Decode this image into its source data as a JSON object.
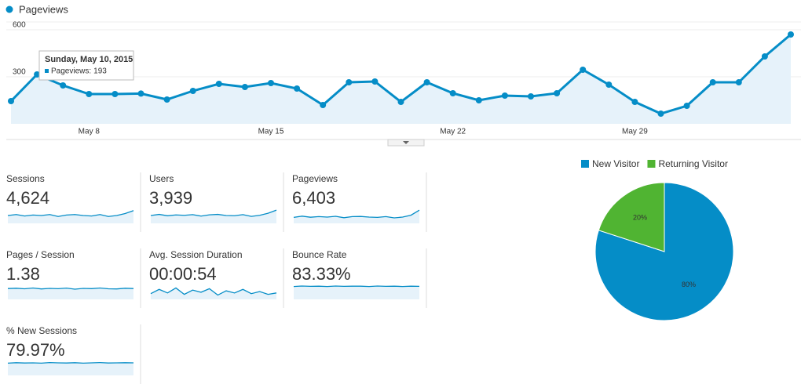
{
  "chart_data": [
    {
      "type": "line",
      "categories": [
        null,
        null,
        null,
        "May 8",
        null,
        null,
        null,
        null,
        null,
        null,
        "May 15",
        null,
        null,
        null,
        null,
        null,
        null,
        "May 22",
        null,
        null,
        null,
        null,
        null,
        null,
        "May 29",
        null,
        null,
        null,
        null,
        null,
        null
      ],
      "series": [
        {
          "name": "Pageviews",
          "color": "#058dc7",
          "values": [
            145,
            315,
            245,
            190,
            190,
            193,
            155,
            210,
            255,
            235,
            260,
            225,
            120,
            265,
            270,
            140,
            265,
            195,
            150,
            180,
            175,
            195,
            345,
            250,
            140,
            65,
            115,
            265,
            265,
            430,
            570
          ]
        }
      ],
      "ylim": [
        0,
        650
      ],
      "yticks": [
        300,
        600
      ],
      "grid": true,
      "tooltip": {
        "date": "Sunday, May 10, 2015",
        "label": "Pageviews:"
      }
    },
    {
      "type": "pie",
      "categories": [
        "New Visitor",
        "Returning Visitor"
      ],
      "values": [
        80,
        20
      ],
      "value_labels": [
        "80%",
        "20%"
      ],
      "colors": [
        "#058dc7",
        "#50b432"
      ],
      "legend": "top"
    }
  ],
  "metrics": [
    {
      "label": "Sessions",
      "value": "4,624",
      "sparkline": {
        "values": [
          140,
          150,
          135,
          145,
          140,
          150,
          130,
          145,
          150,
          140,
          135,
          150,
          130,
          140,
          160,
          190
        ],
        "ylim": [
          60,
          220
        ]
      }
    },
    {
      "label": "Users",
      "value": "3,939",
      "sparkline": {
        "values": [
          120,
          130,
          118,
          125,
          122,
          128,
          115,
          126,
          130,
          120,
          118,
          128,
          112,
          122,
          140,
          168
        ],
        "ylim": [
          50,
          190
        ]
      }
    },
    {
      "label": "Pageviews",
      "value": "6,403",
      "sparkline": {
        "values": [
          190,
          230,
          195,
          215,
          200,
          225,
          180,
          215,
          220,
          200,
          190,
          215,
          175,
          200,
          260,
          420
        ],
        "ylim": [
          0,
          500
        ]
      }
    },
    {
      "label": "Pages / Session",
      "value": "1.38",
      "sparkline": {
        "values": [
          1.38,
          1.42,
          1.35,
          1.45,
          1.33,
          1.4,
          1.36,
          1.44,
          1.3,
          1.4,
          1.37,
          1.45,
          1.35,
          1.33,
          1.42,
          1.38
        ],
        "ylim": [
          0,
          2
        ]
      }
    },
    {
      "label": "Avg. Session Duration",
      "value": "00:00:54",
      "sparkline": {
        "values": [
          40,
          70,
          45,
          80,
          35,
          65,
          50,
          75,
          30,
          60,
          45,
          70,
          40,
          55,
          35,
          45
        ],
        "ylim": [
          0,
          110
        ]
      }
    },
    {
      "label": "Bounce Rate",
      "value": "83.33%",
      "sparkline": {
        "values": [
          82,
          85,
          83,
          84,
          82,
          85,
          83,
          84,
          84,
          82,
          85,
          83,
          84,
          82,
          84,
          83
        ],
        "ylim": [
          0,
          100
        ]
      }
    },
    {
      "label": "% New Sessions",
      "value": "79.97%",
      "sparkline": {
        "values": [
          78,
          81,
          79,
          80,
          78,
          82,
          80,
          79,
          81,
          78,
          80,
          82,
          79,
          80,
          81,
          80
        ],
        "ylim": [
          0,
          100
        ]
      }
    }
  ]
}
